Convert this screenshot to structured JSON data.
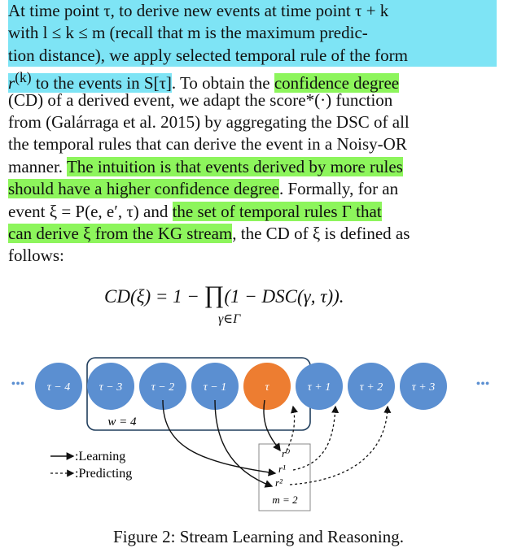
{
  "paragraph": {
    "l1": "At time point τ, to derive new events at time point τ + k",
    "l2a": "with l ≤ k ≤ m (recall that m is the maximum predic-",
    "l3a": "tion distance), we apply selected temporal rule of the form",
    "l4a": "r",
    "l4sup": "(k)",
    "l4b": " to the events in S[τ]",
    "l4c": ". To obtain the ",
    "l4d": "confidence degree",
    "l5": "(CD) of a derived event, we adapt the score*(·) function",
    "l6": "from (Galárraga et al. 2015) by aggregating the DSC of all",
    "l7": "the temporal rules that can derive the event in a Noisy-OR",
    "l8a": "manner. ",
    "l8b": "The intuition is that events derived by more rules",
    "l9a": "should have a higher confidence degree",
    "l9b": ". Formally, for an",
    "l10a": "event ξ = P(e, e′, τ) and ",
    "l10b": "the set of temporal rules Γ that",
    "l11a": "can derive ξ from the KG stream",
    "l11b": ", the CD of ξ is defined as",
    "l12": "follows:"
  },
  "equation": {
    "lhs": "CD(ξ) = 1 − ",
    "prod": "∏",
    "rhs": "(1 − DSC(γ, τ)).",
    "sub": "γ∈Γ"
  },
  "diagram": {
    "nodes": [
      "τ − 4",
      "τ − 3",
      "τ − 2",
      "τ − 1",
      "τ",
      "τ + 1",
      "τ + 2",
      "τ + 3"
    ],
    "ellipsis": "•••",
    "window_label": "w = 4",
    "rules": [
      "r⁰",
      "r¹",
      "r²"
    ],
    "m_label": "m = 2",
    "legend_learning": ":Learning",
    "legend_predicting": ":Predicting",
    "colors": {
      "node": "#5b8fd1",
      "current": "#ed7d31",
      "node_text": "#ffffff"
    }
  },
  "caption": "Figure 2: Stream Learning and Reasoning."
}
